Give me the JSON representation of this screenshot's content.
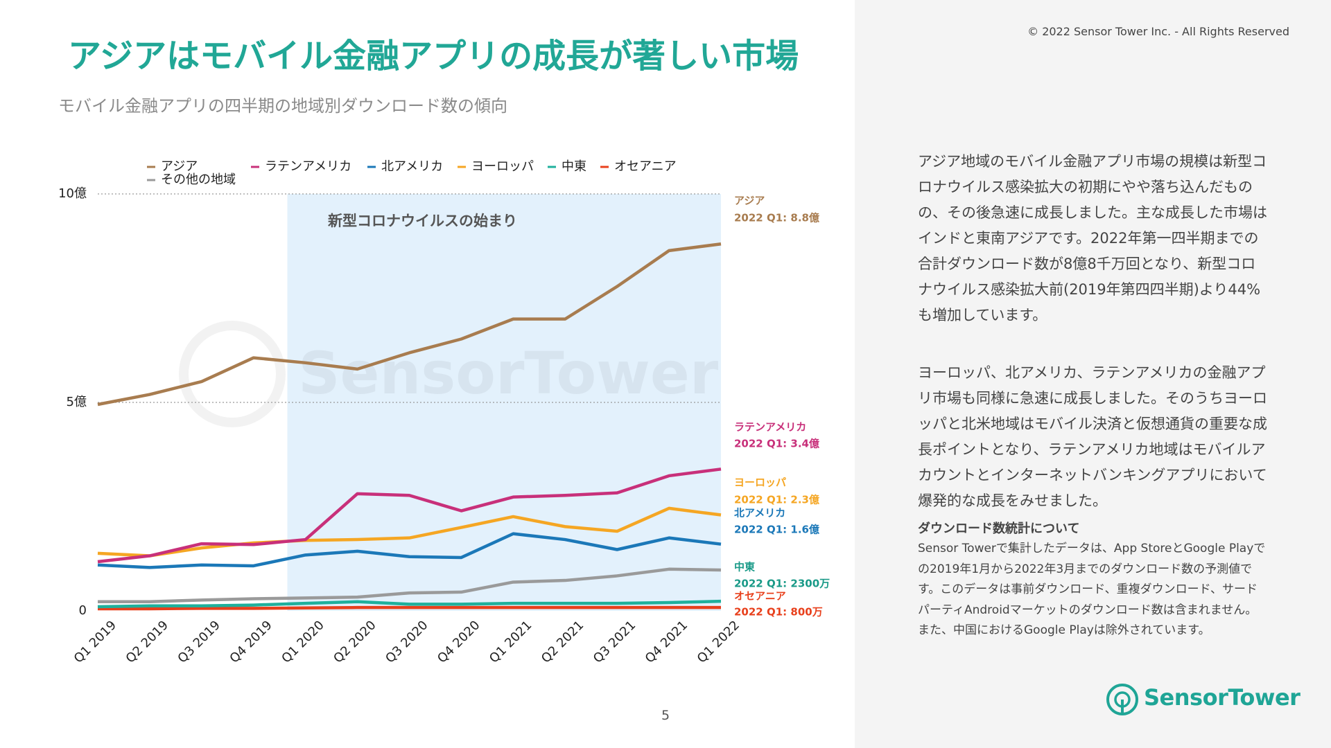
{
  "chart_data": {
    "type": "line",
    "title": "アジアはモバイル金融アプリの成長が著しい市場",
    "subtitle": "モバイル金融アプリの四半期の地域別ダウンロード数の傾向",
    "categories": [
      "Q1 2019",
      "Q2 2019",
      "Q3 2019",
      "Q4 2019",
      "Q1 2020",
      "Q2 2020",
      "Q3 2020",
      "Q4 2020",
      "Q1 2021",
      "Q2 2021",
      "Q3 2021",
      "Q4 2021",
      "Q1 2022"
    ],
    "series": [
      {
        "name": "アジア",
        "color": "#a87c4f",
        "end_label": "2022 Q1: 8.8億",
        "values": [
          4.95,
          5.19,
          5.5,
          6.07,
          5.95,
          5.8,
          6.19,
          6.52,
          7.0,
          7.0,
          7.78,
          8.64,
          8.8
        ]
      },
      {
        "name": "ラテンアメリカ",
        "color": "#c8307a",
        "end_label": "2022 Q1: 3.4億",
        "values": [
          1.18,
          1.32,
          1.61,
          1.59,
          1.71,
          2.81,
          2.77,
          2.4,
          2.73,
          2.77,
          2.83,
          3.24,
          3.4
        ]
      },
      {
        "name": "北アメリカ",
        "color": "#1b78b8",
        "end_label": "2022 Q1: 1.6億",
        "values": [
          1.1,
          1.04,
          1.1,
          1.08,
          1.34,
          1.43,
          1.3,
          1.28,
          1.85,
          1.71,
          1.47,
          1.75,
          1.6
        ]
      },
      {
        "name": "ヨーロッパ",
        "color": "#f5a623",
        "end_label": "2022 Q1: 2.3億",
        "values": [
          1.38,
          1.32,
          1.51,
          1.63,
          1.69,
          1.71,
          1.75,
          2.0,
          2.26,
          2.02,
          1.91,
          2.46,
          2.3
        ]
      },
      {
        "name": "中東",
        "color": "#1fb09c",
        "end_label": "2022 Q1: 2300万",
        "values": [
          0.1,
          0.12,
          0.12,
          0.14,
          0.18,
          0.22,
          0.16,
          0.16,
          0.18,
          0.18,
          0.18,
          0.2,
          0.23
        ]
      },
      {
        "name": "オセアニア",
        "color": "#e8401c",
        "end_label": "2022 Q1: 800万",
        "values": [
          0.05,
          0.05,
          0.06,
          0.06,
          0.07,
          0.08,
          0.08,
          0.08,
          0.08,
          0.08,
          0.08,
          0.08,
          0.08
        ]
      },
      {
        "name": "その他の地域",
        "color": "#9a9a9a",
        "values": [
          0.22,
          0.22,
          0.26,
          0.29,
          0.31,
          0.33,
          0.43,
          0.45,
          0.69,
          0.73,
          0.84,
          1.0,
          0.98
        ]
      }
    ],
    "ylim": [
      0,
      10
    ],
    "yticks": [
      0,
      {
        "value": 5,
        "label": "5億"
      },
      {
        "value": 10,
        "label": "10億"
      }
    ],
    "grid": true,
    "shade": {
      "label": "新型コロナウイルスの始まり",
      "start": "Q1 2020",
      "end": "Q1 2022"
    },
    "watermark": "SensorTower"
  },
  "page": {
    "copyright": "© 2022 Sensor Tower Inc. - All Rights Reserved",
    "paragraphs": [
      "アジア地域のモバイル金融アプリ市場の規模は新型コロナウイルス感染拡大の初期にやや落ち込んだものの、その後急速に成長しました。主な成長した市場はインドと東南アジアです。2022年第一四半期までの合計ダウンロード数が8億8千万回となり、新型コロナウイルス感染拡大前(2019年第四四半期)より44%も増加しています。",
      "ヨーロッパ、北アメリカ、ラテンアメリカの金融アプリ市場も同様に急速に成長しました。そのうちヨーロッパと北米地域はモバイル決済と仮想通貨の重要な成長ポイントとなり、ラテンアメリカ地域はモバイルアカウントとインターネットバンキングアプリにおいて爆発的な成長をみせました。"
    ],
    "note_title": "ダウンロード数統計について",
    "note": "Sensor Towerで集計したデータは、App StoreとGoogle Playでの2019年1月から2022年3月までのダウンロード数の予測値です。このデータは事前ダウンロード、重複ダウンロード、サードパーティAndroidマーケットのダウンロード数は含まれません。また、中国におけるGoogle Playは除外されています。",
    "logo": "SensorTower",
    "page_number": "5"
  }
}
